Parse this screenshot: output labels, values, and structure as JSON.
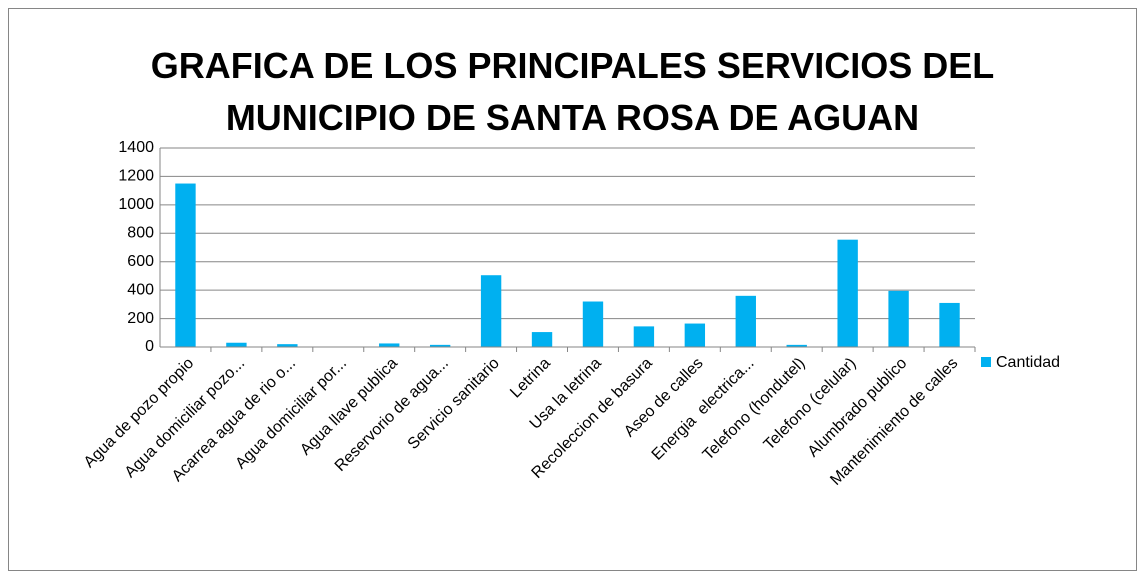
{
  "chart_data": {
    "type": "bar",
    "title": "GRAFICA DE LOS PRINCIPALES SERVICIOS DEL\nMUNICIPIO DE SANTA ROSA DE AGUAN",
    "categories": [
      "Agua de pozo propio",
      "Agua domiciliar pozo...",
      "Acarrea agua de rio o...",
      "Agua domiciliar por...",
      "Agua llave publica",
      "Reservorio de agua...",
      "Servicio sanitario",
      "Letrina",
      "Usa la letrina",
      "Recoleccion de basura",
      "Aseo de calles",
      "Energia  electrica...",
      "Telefono (hondutel)",
      "Telefono (celular)",
      "Alumbrado publico",
      "Mantenimiento de calles"
    ],
    "series": [
      {
        "name": "Cantidad",
        "color": "#00b0f0",
        "values": [
          1150,
          30,
          20,
          0,
          25,
          15,
          505,
          105,
          320,
          145,
          165,
          360,
          15,
          755,
          395,
          310
        ]
      }
    ],
    "ylim": [
      0,
      1400
    ],
    "yticks": [
      0,
      200,
      400,
      600,
      800,
      1000,
      1200,
      1400
    ],
    "grid": true,
    "legend": "right"
  }
}
